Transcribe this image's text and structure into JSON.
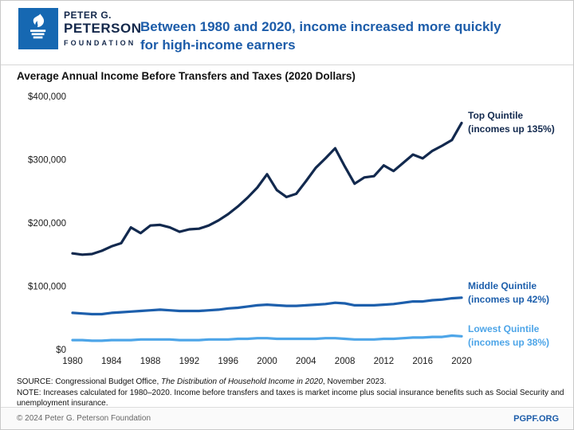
{
  "colors": {
    "brand_blue": "#1668B2",
    "title_blue": "#1C5CA9"
  },
  "header": {
    "logo_line1": "PETER G.",
    "logo_line2": "PETERSON",
    "logo_line3": "FOUNDATION",
    "title_line1": "Between 1980 and 2020, income increased more quickly",
    "title_line2": "for high-income earners"
  },
  "chart": {
    "subtitle": "Average Annual Income Before Transfers and Taxes (2020 Dollars)"
  },
  "chart_data": {
    "type": "line",
    "title": "Average Annual Income Before Transfers and Taxes (2020 Dollars)",
    "xlabel": "",
    "ylabel": "",
    "ylim": [
      0,
      400000
    ],
    "grid": false,
    "legend_position": "right-of-lines",
    "y_tick_labels": [
      "$0",
      "$100,000",
      "$200,000",
      "$300,000",
      "$400,000"
    ],
    "x_ticks": [
      1980,
      1984,
      1988,
      1992,
      1996,
      2000,
      2004,
      2008,
      2012,
      2016,
      2020
    ],
    "x": [
      1980,
      1981,
      1982,
      1983,
      1984,
      1985,
      1986,
      1987,
      1988,
      1989,
      1990,
      1991,
      1992,
      1993,
      1994,
      1995,
      1996,
      1997,
      1998,
      1999,
      2000,
      2001,
      2002,
      2003,
      2004,
      2005,
      2006,
      2007,
      2008,
      2009,
      2010,
      2011,
      2012,
      2013,
      2014,
      2015,
      2016,
      2017,
      2018,
      2019,
      2020
    ],
    "series": [
      {
        "name": "Top Quintile",
        "label_lines": [
          "Top Quintile",
          "(incomes up 135%)"
        ],
        "color": "#12294E",
        "label_y": 42,
        "values": [
          152000,
          150000,
          151000,
          156000,
          163000,
          168000,
          193000,
          184000,
          196000,
          197000,
          193000,
          186000,
          190000,
          191000,
          196000,
          204000,
          214000,
          226000,
          240000,
          256000,
          277000,
          252000,
          241000,
          246000,
          266000,
          287000,
          302000,
          318000,
          289000,
          262000,
          272000,
          274000,
          291000,
          282000,
          295000,
          308000,
          302000,
          314000,
          322000,
          331000,
          358000
        ]
      },
      {
        "name": "Middle Quintile",
        "label_lines": [
          "Middle Quintile",
          "(incomes up 42%)"
        ],
        "color": "#1D5FAC",
        "label_y": 256,
        "values": [
          58000,
          57000,
          56000,
          56000,
          58000,
          59000,
          60000,
          61000,
          62000,
          63000,
          62000,
          61000,
          61000,
          61000,
          62000,
          63000,
          65000,
          66000,
          68000,
          70000,
          71000,
          70000,
          69000,
          69000,
          70000,
          71000,
          72000,
          74000,
          73000,
          70000,
          70000,
          70000,
          71000,
          72000,
          74000,
          76000,
          76000,
          78000,
          79000,
          81000,
          82000
        ]
      },
      {
        "name": "Lowest Quintile",
        "label_lines": [
          "Lowest Quintile",
          "(incomes up 38%)"
        ],
        "color": "#4DA5E8",
        "label_y": 310,
        "values": [
          15000,
          15000,
          14000,
          14000,
          15000,
          15000,
          15000,
          16000,
          16000,
          16000,
          16000,
          15000,
          15000,
          15000,
          16000,
          16000,
          16000,
          17000,
          17000,
          18000,
          18000,
          17000,
          17000,
          17000,
          17000,
          17000,
          18000,
          18000,
          17000,
          16000,
          16000,
          16000,
          17000,
          17000,
          18000,
          19000,
          19000,
          20000,
          20000,
          22000,
          21000
        ]
      }
    ]
  },
  "notes": {
    "source_prefix": "SOURCE: Congressional Budget Office, ",
    "source_italic": "The Distribution of Household Income in 2020",
    "source_suffix": ", November 2023.",
    "note": "NOTE: Increases calculated for 1980–2020. Income before transfers and taxes is market income plus social insurance benefits such as Social Security and unemployment insurance."
  },
  "footer": {
    "copyright": "© 2024 Peter G. Peterson Foundation",
    "site": "PGPF.ORG"
  }
}
